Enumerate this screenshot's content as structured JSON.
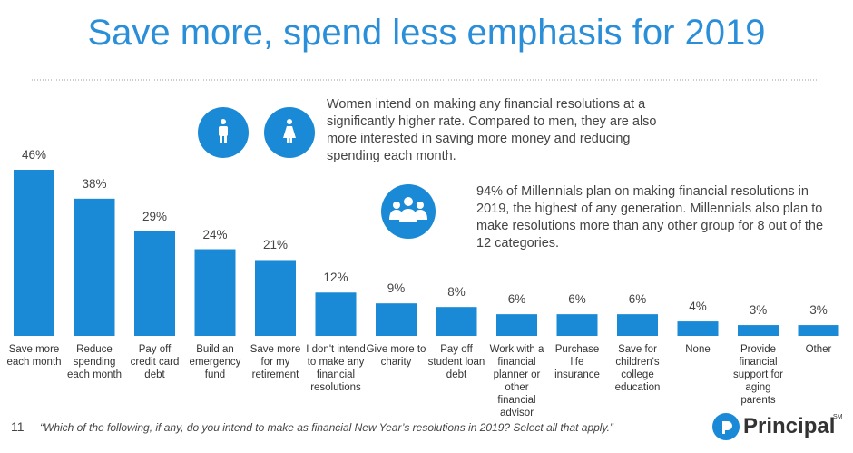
{
  "title": "Save more, spend less emphasis for 2019",
  "insights": [
    "Women intend on making any financial resolutions at a significantly higher rate. Compared to men, they are also more interested in saving more money and reducing spending each month.",
    "94% of Millennials plan on making financial resolutions in 2019, the highest of any generation. Millennials also plan to make resolutions more than any other group for 8 out of the 12 categories."
  ],
  "page_number": "11",
  "footnote": "“Which of the following, if any, do you intend to make as financial New Year’s resolutions in 2019? Select all that apply.”",
  "logo": "Principal",
  "logo_mark": "SM",
  "chart_data": {
    "type": "bar",
    "color": "#1a8ad6",
    "categories": [
      "Save more each month",
      "Reduce spending each month",
      "Pay off credit card debt",
      "Build an emergency fund",
      "Save more for my retirement",
      "I don't intend to make any financial resolutions",
      "Give more to charity",
      "Pay off student loan debt",
      "Work with a financial planner or other financial advisor",
      "Purchase life insurance",
      "Save for children's college education",
      "None",
      "Provide financial support for aging parents",
      "Other"
    ],
    "values": [
      46,
      38,
      29,
      24,
      21,
      12,
      9,
      8,
      6,
      6,
      6,
      4,
      3,
      3
    ],
    "value_labels": [
      "46%",
      "38%",
      "29%",
      "24%",
      "21%",
      "12%",
      "9%",
      "8%",
      "6%",
      "6%",
      "6%",
      "4%",
      "3%",
      "3%"
    ]
  }
}
